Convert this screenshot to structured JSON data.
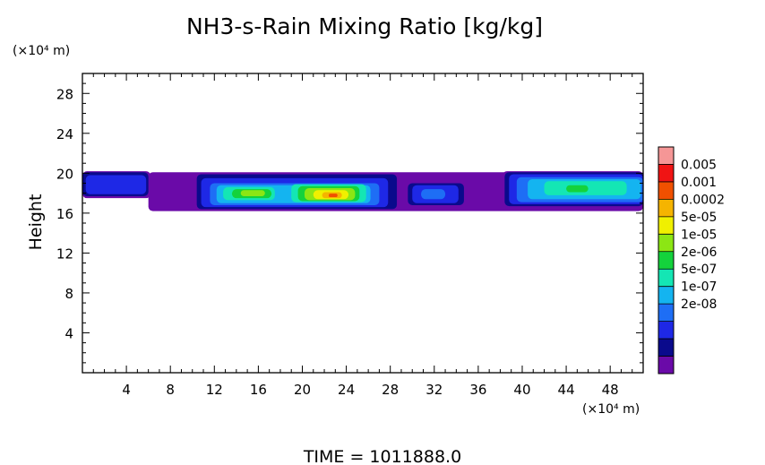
{
  "chart_data": {
    "type": "heatmap",
    "title": "NH3-s-Rain Mixing Ratio [kg/kg]",
    "ylabel": "Height",
    "yunit": "(×10⁴ m)",
    "xunit": "(×10⁴ m)",
    "xlim": [
      0,
      51
    ],
    "ylim": [
      0,
      30
    ],
    "xticks": [
      4,
      8,
      12,
      16,
      20,
      24,
      28,
      32,
      36,
      40,
      44,
      48
    ],
    "xtick_labels": [
      "4",
      "8",
      "12",
      "16",
      "20",
      "24",
      "28",
      "32",
      "36",
      "40",
      "44",
      "48"
    ],
    "yticks": [
      4,
      8,
      12,
      16,
      20,
      24,
      28
    ],
    "ytick_labels": [
      "4",
      "8",
      "12",
      "16",
      "20",
      "24",
      "28"
    ],
    "colorbar": {
      "labels": [
        "0.005",
        "0.001",
        "0.0002",
        "5e-05",
        "1e-05",
        "2e-06",
        "5e-07",
        "1e-07",
        "2e-08"
      ],
      "colors": [
        "#6a0aa8",
        "#0a0a8c",
        "#1e28e6",
        "#1e6ef5",
        "#14b4f0",
        "#14e6b4",
        "#14d23c",
        "#8ce614",
        "#f0f000",
        "#f5b400",
        "#f05000",
        "#f01414",
        "#f59696"
      ]
    },
    "layers": [
      {
        "level": 0,
        "color": "#6a0aa8",
        "blobs": [
          {
            "x0": 0,
            "x1": 6.2,
            "y0": 17.5,
            "y1": 20.2
          },
          {
            "x0": 6,
            "x1": 51,
            "y0": 16.2,
            "y1": 20.1
          },
          {
            "x0": 29.5,
            "x1": 34.8,
            "y0": 16.7,
            "y1": 19.1
          },
          {
            "x0": 36.2,
            "x1": 37.2,
            "y0": 18.0,
            "y1": 18.8
          },
          {
            "x0": 38.2,
            "x1": 51,
            "y0": 16.6,
            "y1": 20.2
          }
        ]
      },
      {
        "level": 1,
        "color": "#0a0a8c",
        "blobs": [
          {
            "x0": 0,
            "x1": 6.0,
            "y0": 17.7,
            "y1": 20.1
          },
          {
            "x0": 10.4,
            "x1": 28.6,
            "y0": 16.4,
            "y1": 19.9
          },
          {
            "x0": 29.6,
            "x1": 34.7,
            "y0": 16.8,
            "y1": 19.0
          },
          {
            "x0": 38.4,
            "x1": 51,
            "y0": 16.7,
            "y1": 20.1
          }
        ]
      },
      {
        "level": 2,
        "color": "#1e28e6",
        "blobs": [
          {
            "x0": 0.3,
            "x1": 5.8,
            "y0": 17.9,
            "y1": 19.8
          },
          {
            "x0": 10.8,
            "x1": 27.8,
            "y0": 16.6,
            "y1": 19.5
          },
          {
            "x0": 30.0,
            "x1": 34.2,
            "y0": 17.0,
            "y1": 18.8
          },
          {
            "x0": 38.8,
            "x1": 51,
            "y0": 16.9,
            "y1": 19.9
          }
        ]
      },
      {
        "level": 3,
        "color": "#1e6ef5",
        "blobs": [
          {
            "x0": 11.6,
            "x1": 27.0,
            "y0": 16.8,
            "y1": 19.0
          },
          {
            "x0": 30.8,
            "x1": 33.0,
            "y0": 17.4,
            "y1": 18.4
          },
          {
            "x0": 39.5,
            "x1": 51,
            "y0": 17.1,
            "y1": 19.6
          }
        ]
      },
      {
        "level": 4,
        "color": "#14b4f0",
        "blobs": [
          {
            "x0": 12.2,
            "x1": 26.2,
            "y0": 17.0,
            "y1": 18.8
          },
          {
            "x0": 40.5,
            "x1": 50.8,
            "y0": 17.4,
            "y1": 19.4
          }
        ]
      },
      {
        "level": 5,
        "color": "#14e6b4",
        "blobs": [
          {
            "x0": 12.8,
            "x1": 17.5,
            "y0": 17.3,
            "y1": 18.6
          },
          {
            "x0": 19.0,
            "x1": 25.8,
            "y0": 17.1,
            "y1": 18.9
          },
          {
            "x0": 42.0,
            "x1": 49.5,
            "y0": 17.8,
            "y1": 19.2
          }
        ]
      },
      {
        "level": 6,
        "color": "#14d23c",
        "blobs": [
          {
            "x0": 13.6,
            "x1": 17.2,
            "y0": 17.5,
            "y1": 18.4
          },
          {
            "x0": 19.6,
            "x1": 25.2,
            "y0": 17.2,
            "y1": 18.7
          },
          {
            "x0": 44.0,
            "x1": 46.0,
            "y0": 18.1,
            "y1": 18.8
          }
        ]
      },
      {
        "level": 7,
        "color": "#8ce614",
        "blobs": [
          {
            "x0": 14.4,
            "x1": 16.6,
            "y0": 17.7,
            "y1": 18.3
          },
          {
            "x0": 20.2,
            "x1": 24.8,
            "y0": 17.3,
            "y1": 18.5
          }
        ]
      },
      {
        "level": 8,
        "color": "#f0f000",
        "blobs": [
          {
            "x0": 21.0,
            "x1": 24.2,
            "y0": 17.4,
            "y1": 18.3
          }
        ]
      },
      {
        "level": 9,
        "color": "#f5b400",
        "blobs": [
          {
            "x0": 21.8,
            "x1": 23.6,
            "y0": 17.5,
            "y1": 18.1
          }
        ]
      },
      {
        "level": 10,
        "color": "#f05000",
        "blobs": [
          {
            "x0": 22.4,
            "x1": 23.2,
            "y0": 17.6,
            "y1": 17.95
          }
        ]
      }
    ],
    "footer": "TIME =  1011888.0"
  }
}
